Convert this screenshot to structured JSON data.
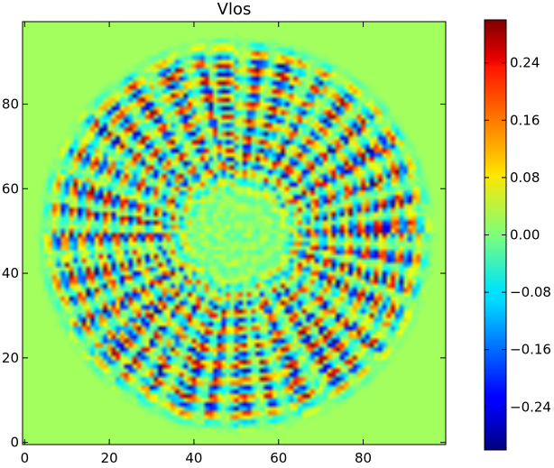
{
  "chart_data": {
    "type": "heatmap",
    "title": "Vlos",
    "xlabel": "",
    "ylabel": "",
    "grid_size": [
      100,
      100
    ],
    "x_ticks": [
      0,
      20,
      40,
      60,
      80
    ],
    "y_ticks": [
      0,
      20,
      40,
      60,
      80
    ],
    "x_tick_labels": [
      "0",
      "20",
      "40",
      "60",
      "80"
    ],
    "y_tick_labels": [
      "0",
      "20",
      "40",
      "60",
      "80"
    ],
    "x_range": [
      -0.5,
      99.5
    ],
    "y_range": [
      99.5,
      -0.5
    ],
    "y_axis_inverted": true,
    "grid": false,
    "colormap": "jet",
    "colorbar": {
      "range": [
        -0.3,
        0.3
      ],
      "ticks": [
        -0.24,
        -0.16,
        -0.08,
        0.0,
        0.08,
        0.16,
        0.24
      ],
      "tick_labels": [
        "−0.24",
        "−0.16",
        "−0.08",
        "0.00",
        "0.08",
        "0.16",
        "0.24"
      ],
      "location": "right"
    },
    "pattern": {
      "description": "radial spoke velocity pattern",
      "center": [
        50,
        50
      ],
      "outer_radius": 47,
      "inner_quiet_radius": 10,
      "background_value": 0.02
    }
  }
}
